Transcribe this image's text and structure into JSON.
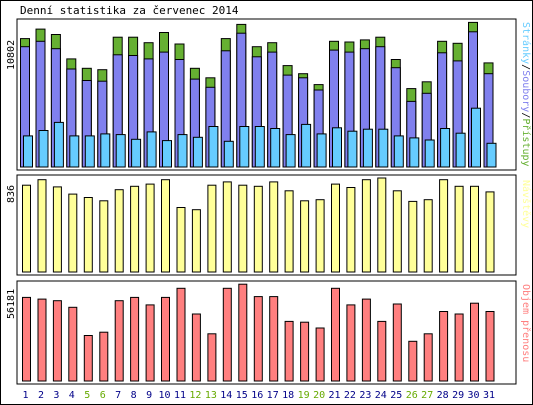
{
  "chart_data": {
    "type": "bar",
    "title": "Denní statistika za červenec 2014",
    "categories": [
      "1",
      "2",
      "3",
      "4",
      "5",
      "6",
      "7",
      "8",
      "9",
      "10",
      "11",
      "12",
      "13",
      "14",
      "15",
      "16",
      "17",
      "18",
      "19",
      "20",
      "21",
      "22",
      "23",
      "24",
      "25",
      "26",
      "27",
      "28",
      "29",
      "30",
      "31"
    ],
    "weekend_days": [
      "5",
      "6",
      "12",
      "13",
      "19",
      "20",
      "26",
      "27"
    ],
    "colors": {
      "pristupy": "#66b032",
      "soubory": "#8080ee",
      "stranky": "#66ccff",
      "navstevy": "#ffff99",
      "objem": "#ff7f7f",
      "weekday_label": "#000088",
      "weekend_label": "#66aa00"
    },
    "panels": [
      {
        "ylabel_value": "10802",
        "ymax": 10802,
        "legend": [
          {
            "label": "Stránky",
            "color": "#66ccff"
          },
          {
            "label": "/",
            "color": "#000000"
          },
          {
            "label": "Soubory",
            "color": "#8080ee"
          },
          {
            "label": "/",
            "color": "#000000"
          },
          {
            "label": "Přístupy",
            "color": "#66b032"
          }
        ],
        "series": [
          {
            "name": "Přístupy",
            "values": [
              9500,
              10200,
              9800,
              8000,
              7300,
              7200,
              9600,
              9600,
              9200,
              9950,
              9100,
              7300,
              6600,
              9500,
              10550,
              8900,
              9200,
              7500,
              6900,
              6100,
              9300,
              9250,
              9400,
              9600,
              7950,
              5800,
              6300,
              9300,
              9150,
              10700,
              7700
            ]
          },
          {
            "name": "Soubory",
            "values": [
              8900,
              9300,
              8750,
              7250,
              6400,
              6350,
              8300,
              8250,
              8000,
              8500,
              7950,
              6500,
              5900,
              8600,
              9900,
              8150,
              8500,
              6800,
              6600,
              5700,
              8650,
              8500,
              8750,
              8900,
              7350,
              4850,
              5450,
              8450,
              7850,
              10000,
              6900
            ]
          },
          {
            "name": "Stránky",
            "values": [
              2300,
              2700,
              3300,
              2300,
              2300,
              2450,
              2400,
              2050,
              2600,
              1950,
              2400,
              2200,
              3000,
              1900,
              3000,
              3000,
              2850,
              2400,
              3150,
              2450,
              2900,
              2650,
              2800,
              2800,
              2300,
              2150,
              2000,
              2850,
              2500,
              4350,
              1750
            ]
          }
        ]
      },
      {
        "ylabel_value": "836",
        "ymax": 836,
        "legend": [
          {
            "label": "Návštěvy",
            "color": "#ffff99"
          }
        ],
        "series": [
          {
            "name": "Návštěvy",
            "values": [
              780,
              830,
              765,
              700,
              670,
              640,
              740,
              770,
              790,
              830,
              580,
              560,
              780,
              810,
              780,
              770,
              810,
              730,
              640,
              650,
              790,
              760,
              830,
              845,
              730,
              635,
              650,
              830,
              770,
              770,
              720
            ]
          }
        ]
      },
      {
        "ylabel_value": "56181",
        "ymax": 56181,
        "legend": [
          {
            "label": "Objem přenosu",
            "color": "#ff7f7f"
          }
        ],
        "series": [
          {
            "name": "Objem přenosu",
            "values": [
              50500,
              49500,
              48500,
              44500,
              27500,
              29500,
              48500,
              50500,
              46000,
              50500,
              56000,
              40500,
              28500,
              56000,
              58500,
              51000,
              51000,
              36000,
              35500,
              32000,
              56000,
              46000,
              49500,
              36000,
              46500,
              24000,
              28500,
              42000,
              40500,
              47000,
              42000
            ]
          }
        ]
      }
    ]
  }
}
